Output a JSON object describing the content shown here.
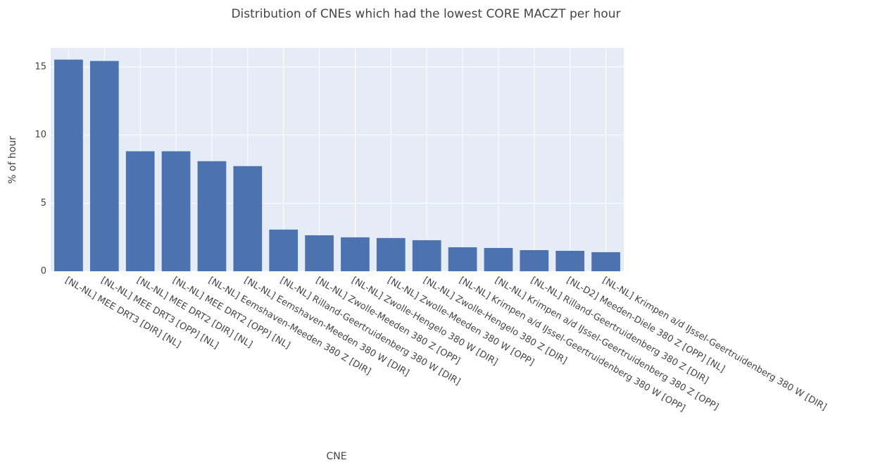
{
  "chart_data": {
    "type": "bar",
    "title": "Distribution of CNEs which had the lowest CORE MACZT per hour",
    "x_label": "CNE",
    "y_label": "% of hour",
    "categories": [
      "[NL-NL] MEE DRT3 [DIR] [NL]",
      "[NL-NL] MEE DRT3 [OPP] [NL]",
      "[NL-NL] MEE DRT2 [DIR] [NL]",
      "[NL-NL] MEE DRT2 [OPP] [NL]",
      "[NL-NL] Eemshaven-Meeden 380 Z [DIR]",
      "[NL-NL] Eemshaven-Meeden 380 W [DIR]",
      "[NL-NL] Rilland-Geertruidenberg 380 W [DIR]",
      "[NL-NL] Zwolle-Meeden 380 Z [OPP]",
      "[NL-NL] Zwolle-Hengelo 380 W [DIR]",
      "[NL-NL] Zwolle-Meeden 380 W [OPP]",
      "[NL-NL] Zwolle-Hengelo 380 Z [DIR]",
      "[NL-NL] Krimpen a/d IJssel-Geertruidenberg 380 W [OPP]",
      "[NL-NL] Krimpen a/d IJssel-Geertruidenberg 380 Z [OPP]",
      "[NL-NL] Rilland-Geertruidenberg 380 Z [DIR]",
      "[NL-D2] Meeden-Diele 380 Z [OPP] [NL]",
      "[NL-NL] Krimpen a/d IJssel-Geertruidenberg 380 W [DIR]"
    ],
    "values": [
      15.54,
      15.44,
      8.81,
      8.81,
      8.08,
      7.72,
      3.06,
      2.64,
      2.49,
      2.44,
      2.28,
      1.76,
      1.71,
      1.55,
      1.5,
      1.4
    ],
    "color": "#4c72b0",
    "ylim": [
      0,
      16.4
    ],
    "yticks": [
      0,
      5,
      10,
      15
    ],
    "grid": true
  }
}
